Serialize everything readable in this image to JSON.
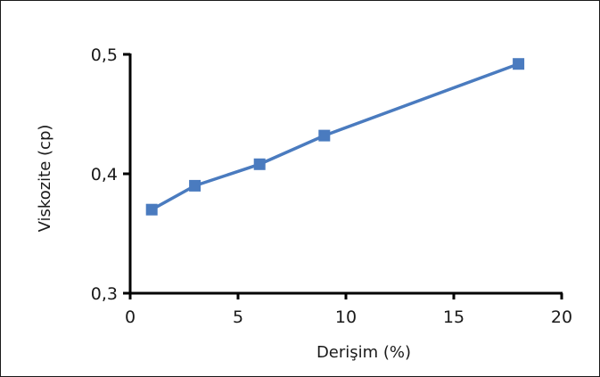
{
  "chart_data": {
    "type": "line",
    "title": "",
    "xlabel": "Derişim (%)",
    "ylabel": "Viskozite (cp)",
    "xlim": [
      0,
      20
    ],
    "ylim": [
      0.3,
      0.5
    ],
    "x_ticks": [
      0,
      5,
      10,
      15,
      20
    ],
    "x_tick_labels": [
      "0",
      "5",
      "10",
      "15",
      "20"
    ],
    "y_ticks": [
      0.3,
      0.4,
      0.5
    ],
    "y_tick_labels": [
      "0,3",
      "0,4",
      "0,5"
    ],
    "grid": false,
    "legend": "none",
    "series": [
      {
        "marker": "square",
        "color": "#4a7bbf",
        "points": [
          {
            "x": 1,
            "y": 0.37
          },
          {
            "x": 3,
            "y": 0.39
          },
          {
            "x": 6,
            "y": 0.408
          },
          {
            "x": 9,
            "y": 0.432
          },
          {
            "x": 18,
            "y": 0.492
          }
        ]
      }
    ]
  }
}
